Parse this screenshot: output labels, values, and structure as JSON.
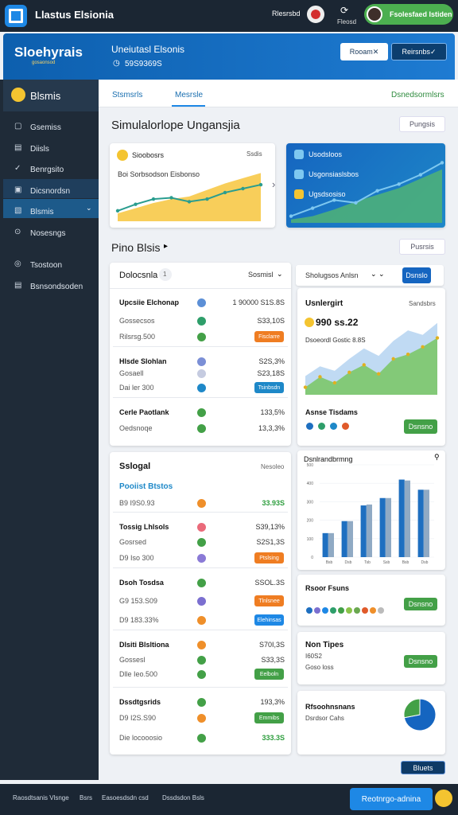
{
  "topbar": {
    "title": "Llastus Elsionia",
    "link": "Rlesrsbd",
    "icon_label": "Fleosd",
    "user": "Fsolesfaed Istiden"
  },
  "header": {
    "brand": "Sloehyrais",
    "brand_sub": "gosaonsod",
    "title": "Uneiutasl Elsonis",
    "subtitle": "59S9369S",
    "button1": "Rooam",
    "button2": "Reirsnbs"
  },
  "sidebar": {
    "title": "Blsmis",
    "items": [
      "Gsemiss",
      "Diisls",
      "Benrgsito",
      "Dicsnordsn",
      "Blsmis",
      "Nosesngs",
      "Tsostoon",
      "Bsnsondsoden"
    ]
  },
  "tabs": {
    "items": [
      "Stsmsrls",
      "Mesrsle"
    ],
    "right": "Dsnedsormlsrs"
  },
  "section1": {
    "title": "Simulalorlope Ungansjia",
    "dropdown": "Pungsis",
    "card1": {
      "title": "Sioobosrs",
      "corner": "Ssdis",
      "text": "Boi Sorbsodson Eisbonso"
    },
    "card2": {
      "line1": "Usodsloos",
      "line2": "Usgonsiaslsbos",
      "line3": "Ugsdsosiso"
    }
  },
  "section2": {
    "title": "Pino Blsis",
    "dropdown": "Pusrsis"
  },
  "panel1": {
    "title": "Dolocsnla",
    "badge": "1",
    "dropdown": "Sosmisl",
    "rows": [
      {
        "label": "Upcsiie Elchonap",
        "dot": "#5c8fd6",
        "value": "1 90000 S1S.8S",
        "bold": true
      },
      {
        "label": "Gossecsos",
        "dot": "#2e9e6a",
        "value": "S33,10S"
      },
      {
        "label": "Rilsrsg.500",
        "dot": "#43a047",
        "badge": "Fisclarre",
        "badge_color": "#ef7d22"
      },
      {
        "label": "Hlsde Slohlan",
        "dot": "#7b8fd6",
        "value": "S2S,3%",
        "bold": true,
        "sep": true
      },
      {
        "label": "Gosaell",
        "dot": "#c5cbe0",
        "value": "S23,18S"
      },
      {
        "label": "Dai ler 300",
        "dot": "#1e88c8",
        "badge": "Tsinbsdn",
        "badge_color": "#1e88c8"
      },
      {
        "label": "Cerle Paotlank",
        "dot": "#43a047",
        "value": "133,5%",
        "bold": true,
        "sep": true
      },
      {
        "label": "Oedsnoqe",
        "dot": "#43a047",
        "value": "13,3,3%"
      }
    ]
  },
  "panel2": {
    "title": "Sslogal",
    "corner": "Nesoleo",
    "subtitle": "Pooiist Btstos",
    "rows": [
      {
        "label": "B9 I9S0.93",
        "dot": "#ef8f2a",
        "value": "33.93S",
        "value_color": "#2e9e3e"
      },
      {
        "label": "Tossig Lhlsols",
        "dot": "#ea6a7a",
        "value": "S39,13%",
        "bold": true,
        "sep": true
      },
      {
        "label": "Gosrsed",
        "dot": "#43a047",
        "value": "S2S1,3S"
      },
      {
        "label": "D9 Iso 300",
        "dot": "#8a7ad6",
        "badge": "Ptslsing",
        "badge_color": "#ef7d22"
      },
      {
        "label": "Dsoh Tosdsa",
        "dot": "#43a047",
        "value": "SSOL.3S",
        "bold": true,
        "sep": true
      },
      {
        "label": "G9 153.S09",
        "dot": "#7b6fd0",
        "badge": "Tlnlsnee",
        "badge_color": "#ef7d22"
      },
      {
        "label": "D9 183.33%",
        "dot": "#ef8f2a",
        "badge": "Elehinsas",
        "badge_color": "#1e88e5"
      },
      {
        "label": "Dlsiti Blsltiona",
        "dot": "#ef8f2a",
        "value": "S70I,3S",
        "bold": true,
        "sep": true
      },
      {
        "label": "Gossesl",
        "dot": "#43a047",
        "value": "S33,3S"
      },
      {
        "label": "Dlle Ieo.500",
        "dot": "#43a047",
        "badge": "Eelboln",
        "badge_color": "#43a047"
      },
      {
        "label": "Dssdtgsrids",
        "dot": "#43a047",
        "value": "193,3%",
        "bold": true,
        "sep": true
      },
      {
        "label": "D9 I2S.S90",
        "dot": "#ef8f2a",
        "badge": "Emmibs",
        "badge_color": "#43a047"
      },
      {
        "label": "Die locooosio",
        "dot": "#43a047",
        "value": "333.3S",
        "value_color": "#2e9e3e"
      }
    ]
  },
  "right": {
    "select": "Sholugsos Anlsn",
    "button": "Dsnslo",
    "area_card": {
      "title": "Usnlergirt",
      "corner": "Sandsbrs",
      "amount": "990 ss.22",
      "text": "Dsoeordl Gostic 8.8S",
      "legend_title": "Asnse Tisdams",
      "button": "Dsnsno"
    },
    "bar_title": "Dsnlrandbrmng",
    "legend_card": {
      "title": "Rsoor Fsuns",
      "button": "Dsnsno"
    },
    "tips_card": {
      "title": "Non Tipes",
      "line1": "I60S2",
      "line2": "Goso loss",
      "button": "Dsnsno"
    },
    "pie_card": {
      "title": "Rfsoohnsnans",
      "text": "Dsrdsor Cahs"
    }
  },
  "bottom_button": "Bluets",
  "footer": {
    "items": [
      "Raosdtsanis Vlsnge",
      "Bsrs",
      "Easoesdsdn csd",
      "Dssdsdon Bsls"
    ],
    "button": "Reotnrgo-adnina"
  },
  "chart_data": [
    {
      "type": "area",
      "ylim": [
        0,
        100
      ],
      "series": [
        {
          "kind": "area",
          "color": "#f7c948",
          "values": [
            12,
            20,
            28,
            34,
            38,
            48,
            58,
            66,
            74
          ]
        },
        {
          "kind": "line",
          "color": "#2a9d8f",
          "values": [
            16,
            26,
            34,
            36,
            30,
            34,
            44,
            50,
            56
          ]
        }
      ]
    },
    {
      "type": "area",
      "ylim": [
        0,
        100
      ],
      "series": [
        {
          "kind": "area",
          "color": "#4caf7a",
          "values": [
            5,
            10,
            20,
            32,
            42,
            52,
            66,
            80
          ]
        },
        {
          "kind": "line",
          "color": "#7ec8f0",
          "values": [
            10,
            22,
            34,
            30,
            48,
            58,
            72,
            90
          ]
        }
      ]
    },
    {
      "type": "area",
      "ylim": [
        0,
        100
      ],
      "series": [
        {
          "kind": "area",
          "color": "#b9d6f2",
          "values": [
            25,
            38,
            32,
            48,
            62,
            52,
            72,
            86,
            80,
            96
          ]
        },
        {
          "kind": "area",
          "color": "#7cc66a",
          "values": [
            10,
            24,
            16,
            30,
            40,
            28,
            48,
            54,
            64,
            76
          ]
        }
      ]
    },
    {
      "type": "bar",
      "ylim": [
        0,
        500
      ],
      "yticks": [
        0,
        100,
        200,
        300,
        400,
        500
      ],
      "categories": [
        "Bsb",
        "Dsb",
        "Tsb",
        "Ssb",
        "Bsb",
        "Dsb"
      ],
      "series": [
        {
          "color": "#1e6fc0",
          "values": [
            130,
            195,
            280,
            320,
            420,
            365
          ]
        },
        {
          "color": "#90aac4",
          "values": [
            130,
            195,
            285,
            320,
            415,
            365
          ]
        }
      ]
    },
    {
      "type": "pie",
      "values": [
        72,
        28
      ],
      "colors": [
        "#1565c0",
        "#43a047"
      ]
    }
  ]
}
